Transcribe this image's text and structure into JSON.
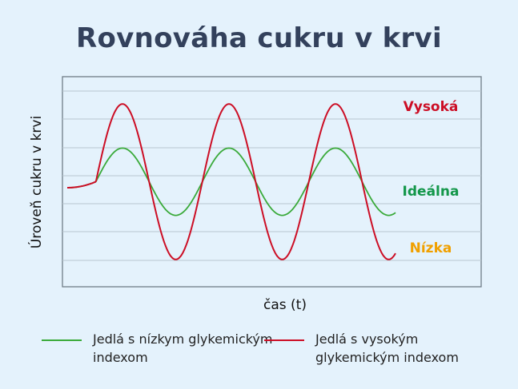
{
  "chart_data": {
    "type": "line",
    "title": "Rovnováha cukru v krvi",
    "xlabel": "čas (t)",
    "ylabel": "Úroveň cukru v krvi",
    "x_ticks_labeled": false,
    "y_ticks_labeled": false,
    "grid": "horizontal",
    "legend_placement": "bottom",
    "level_labels": [
      {
        "name": "Vysoká",
        "color": "#cc0e25"
      },
      {
        "name": "Ideálna",
        "color": "#13974a"
      },
      {
        "name": "Nízka",
        "color": "#f0a000"
      }
    ],
    "series": [
      {
        "name": "Jedlá s nízkym glykemickým indexom",
        "color": "#3aaa3a",
        "shape": "damped-sine",
        "baseline": 0.5,
        "amplitude": 0.16,
        "periods": 3
      },
      {
        "name": "Jedlá s vysokým glykemickým indexom",
        "color": "#cc0e25",
        "shape": "sine",
        "baseline": 0.5,
        "amplitude": 0.37,
        "periods": 3
      }
    ]
  }
}
